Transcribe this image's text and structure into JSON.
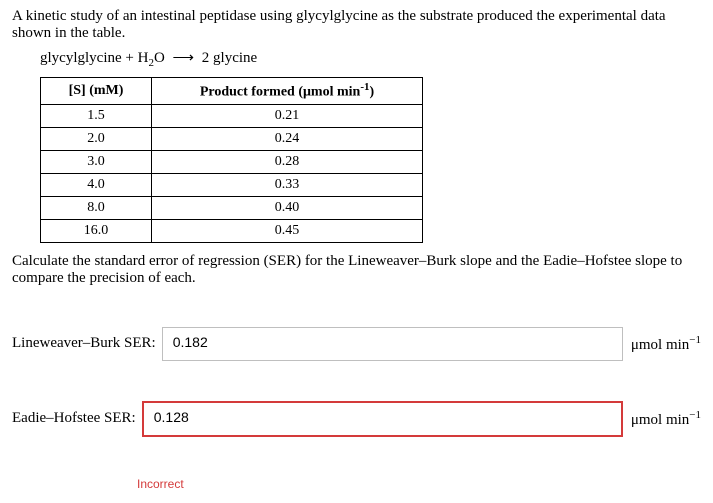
{
  "intro": "A kinetic study of an intestinal peptidase using glycylglycine as the substrate produced the experimental data shown in the table.",
  "reaction": {
    "left1": "glycylglycine + H",
    "sub1": "2",
    "left2": "O",
    "arrow": "⟶",
    "right": "2 glycine"
  },
  "table": {
    "header": {
      "col1": "[S] (mM)",
      "col2_pre": "Product formed (μmol min",
      "col2_sup": "-1",
      "col2_post": ")"
    },
    "rows": [
      {
        "s": "1.5",
        "p": "0.21"
      },
      {
        "s": "2.0",
        "p": "0.24"
      },
      {
        "s": "3.0",
        "p": "0.28"
      },
      {
        "s": "4.0",
        "p": "0.33"
      },
      {
        "s": "8.0",
        "p": "0.40"
      },
      {
        "s": "16.0",
        "p": "0.45"
      }
    ],
    "border_color": "#000000",
    "text_color": "#000000",
    "font_size": 14
  },
  "calc_text": "Calculate the standard error of regression (SER) for the Lineweaver–Burk slope and the Eadie–Hofstee slope to compare the precision of each.",
  "answers": {
    "lb_label": "Lineweaver–Burk SER:",
    "lb_value": "0.182",
    "eh_label": "Eadie–Hofstee SER:",
    "eh_value": "0.128",
    "unit_pre": "μmol min",
    "unit_sup": "−1"
  },
  "incorrect_label": "Incorrect",
  "colors": {
    "text": "#000000",
    "background": "#ffffff",
    "input_border": "#bfbfbf",
    "error": "#d43a3a"
  }
}
